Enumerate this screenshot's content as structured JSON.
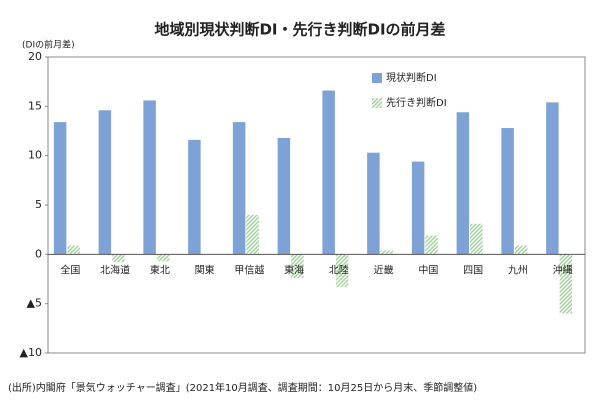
{
  "chart_data": {
    "type": "bar",
    "title": "地域別現状判断DI・先行き判断DIの前月差",
    "y_label": "(DIの前月差)",
    "source": "(出所)内閣府「景気ウォッチャー調査」(2021年10月調査、調査期間：10月25日から月末、季節調整値)",
    "categories": [
      "全国",
      "北海道",
      "東北",
      "関東",
      "甲信越",
      "東海",
      "北陸",
      "近畿",
      "中国",
      "四国",
      "九州",
      "沖縄"
    ],
    "series": [
      {
        "name": "現状判断DI",
        "color": "#7ea2d6",
        "pattern": "solid",
        "values": [
          13.4,
          14.6,
          15.6,
          11.6,
          13.4,
          11.8,
          16.6,
          10.3,
          9.4,
          14.4,
          12.8,
          15.4
        ]
      },
      {
        "name": "先行き判断DI",
        "color": "#9fd49a",
        "pattern": "hatch",
        "values": [
          0.9,
          -0.8,
          -0.7,
          0,
          4.0,
          -2.4,
          -3.3,
          0.4,
          1.9,
          3.1,
          0.9,
          -6.0
        ]
      }
    ],
    "ylim": [
      -10,
      20
    ],
    "yticks": [
      {
        "value": -10,
        "label": "▲10"
      },
      {
        "value": -5,
        "label": "▲5"
      },
      0,
      5,
      10,
      15,
      20
    ],
    "legend": "top-right"
  }
}
